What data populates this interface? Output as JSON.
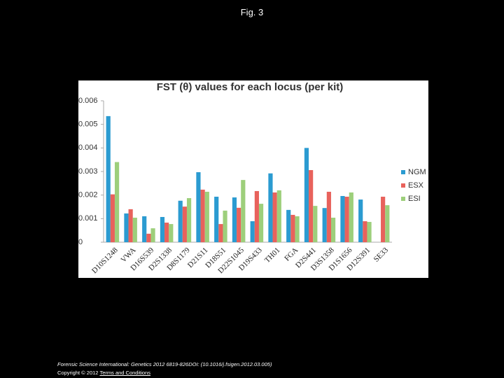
{
  "header": {
    "title": "Fig. 3"
  },
  "chart_data": {
    "type": "bar",
    "title": "FST (θ) values for each locus (per kit)",
    "categories": [
      "D10S1248",
      "VWA",
      "D16S539",
      "D2S1338",
      "D8S1179",
      "D21S11",
      "D18S51",
      "D22S1045",
      "D19S433",
      "TH01",
      "FGA",
      "D2S441",
      "D3S1358",
      "D1S1656",
      "D12S391",
      "SE33"
    ],
    "series": [
      {
        "name": "NGM",
        "color": "#2b9bd1",
        "values": [
          0.00535,
          0.00122,
          0.0011,
          0.00107,
          0.00176,
          0.00297,
          0.00193,
          0.0019,
          0.00089,
          0.00292,
          0.00137,
          0.004,
          0.00145,
          0.00196,
          0.00181,
          null
        ]
      },
      {
        "name": "ESX",
        "color": "#e8625c",
        "values": [
          0.00203,
          0.0014,
          0.00036,
          0.00083,
          0.00151,
          0.00223,
          0.00077,
          0.00146,
          0.00217,
          0.00211,
          0.00116,
          0.00306,
          0.00214,
          0.00193,
          0.00089,
          0.00193
        ]
      },
      {
        "name": "ESI",
        "color": "#9dcf7b",
        "values": [
          0.0034,
          0.00104,
          0.00059,
          0.00077,
          0.00187,
          0.00214,
          0.00134,
          0.00264,
          0.00163,
          0.0022,
          0.0011,
          0.00154,
          0.00104,
          0.00211,
          0.00086,
          0.00157
        ]
      }
    ],
    "ylim": [
      0,
      0.006
    ],
    "yticks": [
      0,
      0.001,
      0.002,
      0.003,
      0.004,
      0.005,
      0.006
    ],
    "grid": false,
    "legend": "right"
  },
  "footer": {
    "citation": "Forensic Science International: Genetics 2012 6819-826DOI: (10.1016/j.fsigen.2012.03.005)",
    "copyright": "Copyright © 2012",
    "link": "Terms and Conditions"
  }
}
